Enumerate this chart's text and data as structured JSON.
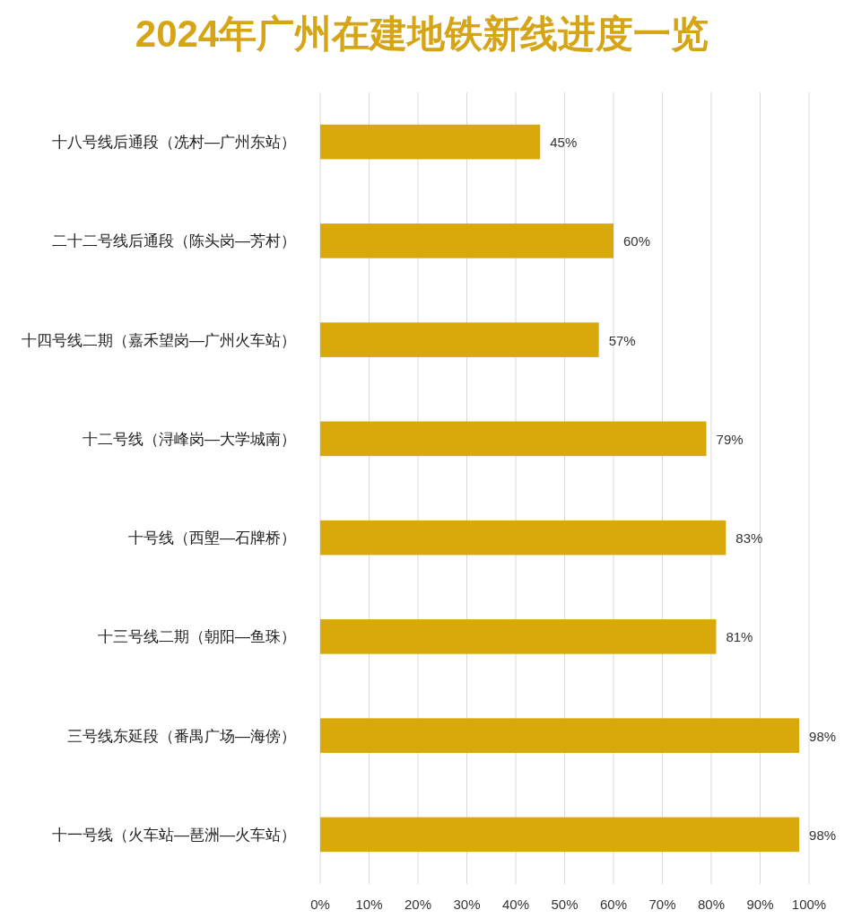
{
  "chart_data": {
    "type": "bar",
    "orientation": "horizontal",
    "title": "2024年广州在建地铁新线进度一览",
    "categories": [
      "十八号线后通段（冼村—广州东站）",
      "二十二号线后通段（陈头岗—芳村）",
      "十四号线二期（嘉禾望岗—广州火车站）",
      "十二号线（浔峰岗—大学城南）",
      "十号线（西塱—石牌桥）",
      "十三号线二期（朝阳—鱼珠）",
      "三号线东延段（番禺广场—海傍）",
      "十一号线（火车站—琶洲—火车站）"
    ],
    "values": [
      45,
      60,
      57,
      79,
      83,
      81,
      98,
      98
    ],
    "value_labels": [
      "45%",
      "60%",
      "57%",
      "79%",
      "83%",
      "81%",
      "98%",
      "98%"
    ],
    "color": "#d9a90c",
    "xlim": [
      0,
      100
    ],
    "xticks": [
      {
        "value": 0,
        "label": "0%"
      },
      {
        "value": 10,
        "label": "10%"
      },
      {
        "value": 20,
        "label": "20%"
      },
      {
        "value": 30,
        "label": "30%"
      },
      {
        "value": 40,
        "label": "40%"
      },
      {
        "value": 50,
        "label": "50%"
      },
      {
        "value": 60,
        "label": "60%"
      },
      {
        "value": 70,
        "label": "70%"
      },
      {
        "value": 80,
        "label": "80%"
      },
      {
        "value": 90,
        "label": "90%"
      },
      {
        "value": 100,
        "label": "100%"
      }
    ],
    "grid": "x"
  }
}
